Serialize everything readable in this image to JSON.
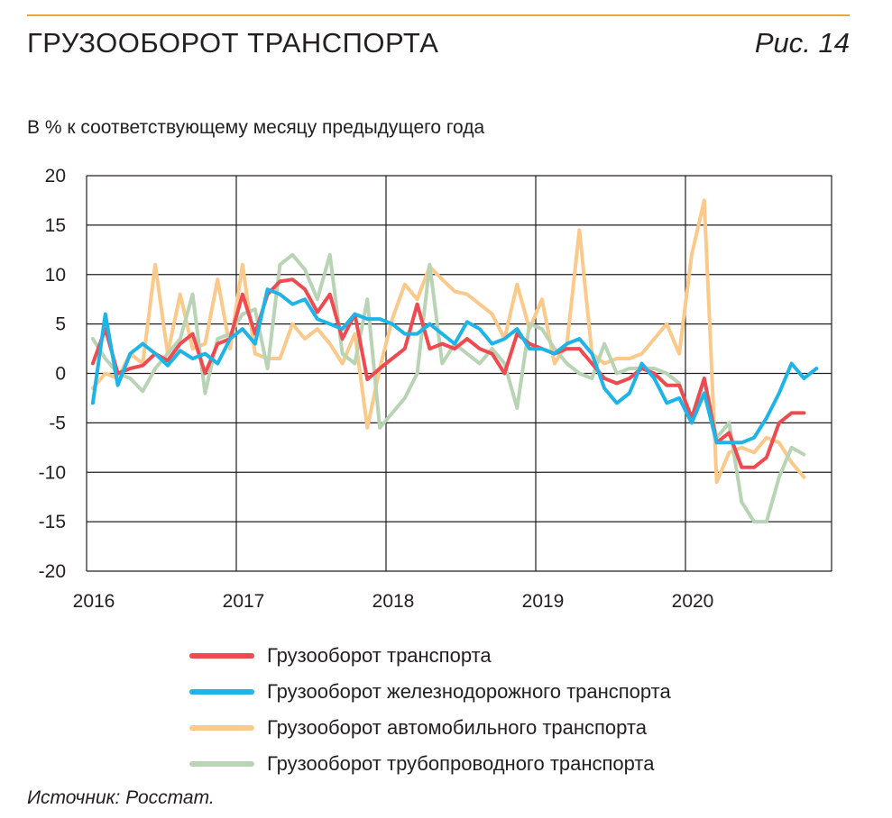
{
  "header": {
    "title": "ГРУЗООБОРОТ ТРАНСПОРТА",
    "figure_label": "Рис. 14"
  },
  "source_note": "Источник: Росстат.",
  "chart_data": {
    "type": "line",
    "subtitle": "В % к соответствующему месяцу предыдущего года",
    "x_start": "2016-01",
    "x_tick_labels": [
      "2016",
      "2017",
      "2018",
      "2019",
      "2020"
    ],
    "ylim": [
      -20,
      20
    ],
    "y_ticks": [
      20,
      15,
      10,
      5,
      0,
      -5,
      -10,
      -15,
      -20
    ],
    "grid": true,
    "legend_position": "bottom",
    "series": [
      {
        "name": "Грузооборот транспорта",
        "color": "#ef4a50",
        "values": [
          1.0,
          4.5,
          0.0,
          0.5,
          0.8,
          2.0,
          1.3,
          3.0,
          4.0,
          0.0,
          3.0,
          3.5,
          8.0,
          4.0,
          8.0,
          9.3,
          9.5,
          8.5,
          6.2,
          8.0,
          3.5,
          6.0,
          -0.6,
          0.5,
          1.5,
          2.5,
          7.0,
          2.5,
          3.0,
          2.5,
          3.5,
          2.5,
          2.0,
          0.0,
          4.0,
          3.0,
          2.5,
          2.0,
          2.5,
          2.5,
          1.0,
          -0.5,
          -1.0,
          -0.5,
          0.5,
          0.0,
          -1.2,
          -1.2,
          -4.5,
          -0.5,
          -7.0,
          -6.0,
          -9.5,
          -9.5,
          -8.5,
          -5.0,
          -4.0,
          -4.0
        ]
      },
      {
        "name": "Грузооборот железнодорожного транспорта",
        "color": "#1eb4e8",
        "values": [
          -3.0,
          6.0,
          -1.2,
          2.0,
          3.0,
          2.0,
          0.8,
          2.3,
          1.5,
          2.0,
          1.0,
          3.5,
          4.5,
          3.0,
          8.5,
          8.0,
          7.0,
          7.5,
          5.5,
          5.0,
          4.5,
          6.0,
          5.5,
          5.5,
          5.0,
          4.0,
          4.0,
          5.0,
          4.0,
          3.0,
          5.2,
          4.5,
          3.0,
          3.5,
          4.5,
          2.5,
          2.5,
          2.0,
          3.0,
          3.5,
          2.0,
          -1.5,
          -3.0,
          -2.0,
          1.0,
          -0.5,
          -3.0,
          -2.5,
          -5.0,
          -2.0,
          -7.0,
          -7.0,
          -7.0,
          -6.5,
          -4.5,
          -2.0,
          1.0,
          -0.5,
          0.5
        ]
      },
      {
        "name": "Грузооборот автомобильного транспорта",
        "color": "#fbc98a",
        "values": [
          -1.5,
          0.0,
          -0.5,
          2.0,
          1.0,
          11.0,
          2.0,
          8.0,
          2.5,
          3.0,
          9.5,
          2.5,
          11.0,
          2.0,
          1.5,
          1.5,
          5.0,
          3.5,
          4.5,
          3.0,
          1.0,
          4.0,
          -5.5,
          0.5,
          5.5,
          9.0,
          7.5,
          10.8,
          9.5,
          8.3,
          8.0,
          7.0,
          6.0,
          3.5,
          9.0,
          4.5,
          7.5,
          1.0,
          3.0,
          14.5,
          2.0,
          1.0,
          1.5,
          1.5,
          2.0,
          3.5,
          5.0,
          2.0,
          12.0,
          17.5,
          -11.0,
          -8.0,
          -7.5,
          -8.0,
          -6.5,
          -7.0,
          -9.0,
          -10.5
        ]
      },
      {
        "name": "Грузооборот трубопроводного транспорта",
        "color": "#b8d4b4",
        "values": [
          3.5,
          1.5,
          0.0,
          -0.5,
          -1.8,
          0.5,
          2.0,
          3.5,
          8.0,
          -2.0,
          3.5,
          4.0,
          6.0,
          6.5,
          0.5,
          11.0,
          12.0,
          10.5,
          7.5,
          12.0,
          2.0,
          1.0,
          7.5,
          -5.5,
          -4.0,
          -2.5,
          0.0,
          11.0,
          1.0,
          3.0,
          2.0,
          1.0,
          2.5,
          1.0,
          -3.5,
          5.0,
          4.5,
          2.5,
          1.0,
          0.0,
          -0.5,
          3.0,
          0.0,
          0.5,
          0.5,
          0.5,
          0.0,
          -1.0,
          -5.0,
          -0.5,
          -6.5,
          -5.0,
          -13.0,
          -15.0,
          -15.0,
          -10.5,
          -7.5,
          -8.2
        ]
      }
    ]
  }
}
